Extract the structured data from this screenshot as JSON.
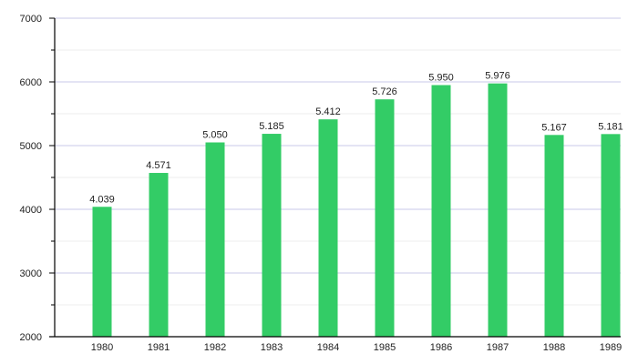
{
  "chart_data": {
    "type": "bar",
    "title": "",
    "xlabel": "",
    "ylabel": "",
    "categories": [
      "1980",
      "1981",
      "1982",
      "1983",
      "1984",
      "1985",
      "1986",
      "1987",
      "1988",
      "1989"
    ],
    "values": [
      4039,
      4571,
      5050,
      5185,
      5412,
      5726,
      5950,
      5976,
      5167,
      5181
    ],
    "value_labels": [
      "4.039",
      "4.571",
      "5.050",
      "5.185",
      "5.412",
      "5.726",
      "5.950",
      "5.976",
      "5.167",
      "5.181"
    ],
    "ylim": [
      2000,
      7000
    ],
    "yticks": [
      2000,
      3000,
      4000,
      5000,
      6000,
      7000
    ],
    "ytick_labels": [
      "2000",
      "3000",
      "4000",
      "5000",
      "6000",
      "7000"
    ],
    "minor_yticks": [
      2500,
      3500,
      4500,
      5500,
      6500
    ],
    "grid": true,
    "legend": "none",
    "colors": {
      "bar": "#33cc66",
      "grid_major": "#c8c8e8",
      "grid_minor": "#eeeeee",
      "axis": "#000000"
    }
  }
}
